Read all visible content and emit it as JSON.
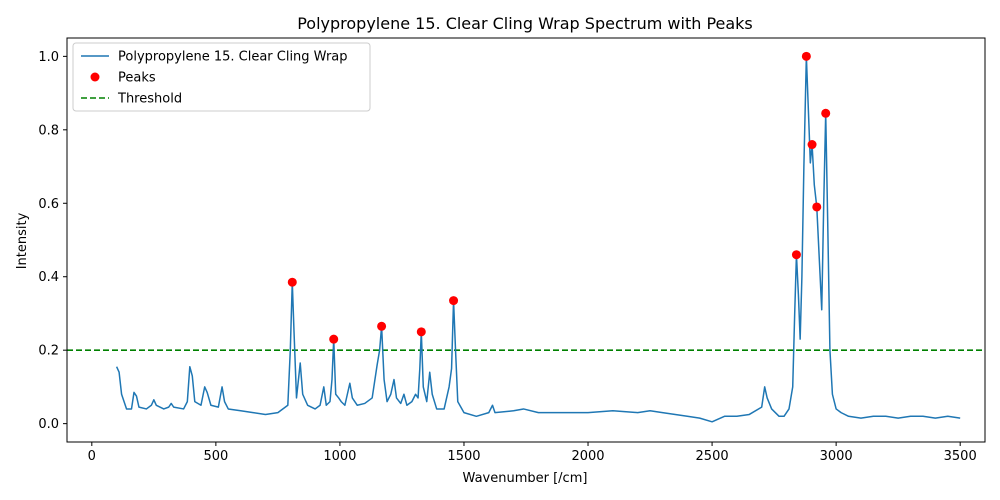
{
  "chart_data": {
    "type": "line",
    "title": "Polypropylene 15. Clear Cling Wrap Spectrum with Peaks",
    "xlabel": "Wavenumber [/cm]",
    "ylabel": "Intensity",
    "xlim": [
      -100,
      3600
    ],
    "ylim": [
      -0.05,
      1.05
    ],
    "xticks": [
      0,
      500,
      1000,
      1500,
      2000,
      2500,
      3000,
      3500
    ],
    "yticks": [
      0.0,
      0.2,
      0.4,
      0.6,
      0.8,
      1.0
    ],
    "xtick_labels": [
      "0",
      "500",
      "1000",
      "1500",
      "2000",
      "2500",
      "3000",
      "3500"
    ],
    "ytick_labels": [
      "0.0",
      "0.2",
      "0.4",
      "0.6",
      "0.8",
      "1.0"
    ],
    "grid": false,
    "legend_position": "top-left",
    "series": [
      {
        "name": "Polypropylene 15. Clear Cling Wrap",
        "kind": "line",
        "color": "#1f77b4",
        "points": [
          [
            100,
            0.155
          ],
          [
            110,
            0.14
          ],
          [
            120,
            0.08
          ],
          [
            140,
            0.04
          ],
          [
            160,
            0.04
          ],
          [
            170,
            0.085
          ],
          [
            180,
            0.075
          ],
          [
            190,
            0.045
          ],
          [
            220,
            0.04
          ],
          [
            240,
            0.05
          ],
          [
            250,
            0.065
          ],
          [
            260,
            0.05
          ],
          [
            290,
            0.04
          ],
          [
            310,
            0.045
          ],
          [
            320,
            0.055
          ],
          [
            330,
            0.045
          ],
          [
            370,
            0.04
          ],
          [
            385,
            0.06
          ],
          [
            395,
            0.155
          ],
          [
            405,
            0.13
          ],
          [
            415,
            0.06
          ],
          [
            440,
            0.05
          ],
          [
            455,
            0.1
          ],
          [
            465,
            0.085
          ],
          [
            480,
            0.05
          ],
          [
            510,
            0.045
          ],
          [
            525,
            0.1
          ],
          [
            535,
            0.06
          ],
          [
            550,
            0.04
          ],
          [
            600,
            0.035
          ],
          [
            650,
            0.03
          ],
          [
            700,
            0.025
          ],
          [
            750,
            0.03
          ],
          [
            790,
            0.05
          ],
          [
            800,
            0.2
          ],
          [
            808,
            0.385
          ],
          [
            815,
            0.25
          ],
          [
            825,
            0.07
          ],
          [
            840,
            0.165
          ],
          [
            850,
            0.08
          ],
          [
            870,
            0.05
          ],
          [
            900,
            0.04
          ],
          [
            920,
            0.05
          ],
          [
            935,
            0.1
          ],
          [
            945,
            0.05
          ],
          [
            960,
            0.06
          ],
          [
            968,
            0.12
          ],
          [
            975,
            0.23
          ],
          [
            983,
            0.08
          ],
          [
            995,
            0.07
          ],
          [
            1005,
            0.06
          ],
          [
            1020,
            0.05
          ],
          [
            1030,
            0.08
          ],
          [
            1040,
            0.11
          ],
          [
            1050,
            0.07
          ],
          [
            1070,
            0.05
          ],
          [
            1100,
            0.055
          ],
          [
            1130,
            0.07
          ],
          [
            1150,
            0.16
          ],
          [
            1160,
            0.2
          ],
          [
            1168,
            0.265
          ],
          [
            1178,
            0.12
          ],
          [
            1190,
            0.06
          ],
          [
            1205,
            0.08
          ],
          [
            1218,
            0.12
          ],
          [
            1228,
            0.07
          ],
          [
            1245,
            0.055
          ],
          [
            1258,
            0.08
          ],
          [
            1270,
            0.05
          ],
          [
            1290,
            0.06
          ],
          [
            1305,
            0.08
          ],
          [
            1315,
            0.07
          ],
          [
            1322,
            0.15
          ],
          [
            1328,
            0.25
          ],
          [
            1336,
            0.1
          ],
          [
            1350,
            0.06
          ],
          [
            1362,
            0.14
          ],
          [
            1372,
            0.08
          ],
          [
            1390,
            0.04
          ],
          [
            1420,
            0.04
          ],
          [
            1440,
            0.1
          ],
          [
            1450,
            0.15
          ],
          [
            1458,
            0.335
          ],
          [
            1466,
            0.2
          ],
          [
            1475,
            0.06
          ],
          [
            1500,
            0.03
          ],
          [
            1550,
            0.02
          ],
          [
            1600,
            0.03
          ],
          [
            1615,
            0.05
          ],
          [
            1625,
            0.03
          ],
          [
            1700,
            0.035
          ],
          [
            1740,
            0.04
          ],
          [
            1800,
            0.03
          ],
          [
            1900,
            0.03
          ],
          [
            2000,
            0.03
          ],
          [
            2100,
            0.035
          ],
          [
            2200,
            0.03
          ],
          [
            2250,
            0.035
          ],
          [
            2300,
            0.03
          ],
          [
            2400,
            0.02
          ],
          [
            2450,
            0.015
          ],
          [
            2500,
            0.005
          ],
          [
            2550,
            0.02
          ],
          [
            2600,
            0.02
          ],
          [
            2650,
            0.025
          ],
          [
            2700,
            0.045
          ],
          [
            2712,
            0.1
          ],
          [
            2722,
            0.07
          ],
          [
            2740,
            0.04
          ],
          [
            2770,
            0.02
          ],
          [
            2790,
            0.02
          ],
          [
            2810,
            0.04
          ],
          [
            2825,
            0.1
          ],
          [
            2833,
            0.3
          ],
          [
            2840,
            0.46
          ],
          [
            2848,
            0.35
          ],
          [
            2855,
            0.23
          ],
          [
            2862,
            0.4
          ],
          [
            2870,
            0.7
          ],
          [
            2880,
            1.0
          ],
          [
            2890,
            0.82
          ],
          [
            2896,
            0.71
          ],
          [
            2903,
            0.76
          ],
          [
            2912,
            0.65
          ],
          [
            2922,
            0.59
          ],
          [
            2932,
            0.45
          ],
          [
            2942,
            0.31
          ],
          [
            2950,
            0.6
          ],
          [
            2958,
            0.845
          ],
          [
            2966,
            0.55
          ],
          [
            2975,
            0.2
          ],
          [
            2985,
            0.08
          ],
          [
            3000,
            0.04
          ],
          [
            3020,
            0.03
          ],
          [
            3050,
            0.02
          ],
          [
            3100,
            0.015
          ],
          [
            3150,
            0.02
          ],
          [
            3200,
            0.02
          ],
          [
            3250,
            0.015
          ],
          [
            3300,
            0.02
          ],
          [
            3350,
            0.02
          ],
          [
            3400,
            0.015
          ],
          [
            3450,
            0.02
          ],
          [
            3500,
            0.015
          ]
        ]
      },
      {
        "name": "Peaks",
        "kind": "scatter",
        "color": "#ff0000",
        "points": [
          [
            808,
            0.385
          ],
          [
            975,
            0.23
          ],
          [
            1168,
            0.265
          ],
          [
            1328,
            0.25
          ],
          [
            1458,
            0.335
          ],
          [
            2840,
            0.46
          ],
          [
            2880,
            1.0
          ],
          [
            2903,
            0.76
          ],
          [
            2922,
            0.59
          ],
          [
            2958,
            0.845
          ]
        ]
      },
      {
        "name": "Threshold",
        "kind": "hline",
        "color": "#008000",
        "y": 0.2
      }
    ]
  }
}
